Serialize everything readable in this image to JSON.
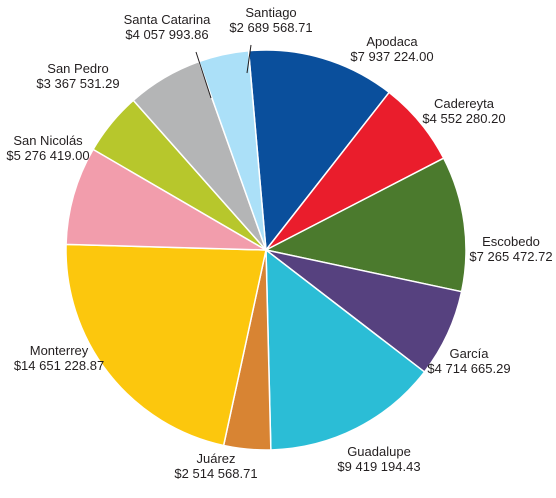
{
  "chart_data": {
    "type": "pie",
    "title": "",
    "slices": [
      {
        "name": "Apodaca",
        "value_text": "$7 937 224.00",
        "value": 7937224.0,
        "color": "#0a4f9c"
      },
      {
        "name": "Cadereyta",
        "value_text": "$4 552 280.20",
        "value": 4552280.2,
        "color": "#ea1d2c"
      },
      {
        "name": "Escobedo",
        "value_text": "$7 265 472.72",
        "value": 7265472.72,
        "color": "#4b7a2d"
      },
      {
        "name": "García",
        "value_text": "$4 714 665.29",
        "value": 4714665.29,
        "color": "#56417f"
      },
      {
        "name": "Guadalupe",
        "value_text": "$9 419 194.43",
        "value": 9419194.43,
        "color": "#2bbdd6"
      },
      {
        "name": "Juárez",
        "value_text": "$2 514 568.71",
        "value": 2514568.71,
        "color": "#d88433"
      },
      {
        "name": "Monterrey",
        "value_text": "$14 651 228.87",
        "value": 14651228.87,
        "color": "#fcc70d"
      },
      {
        "name": "San Nicolás",
        "value_text": "$5 276 419.00",
        "value": 5276419.0,
        "color": "#f29dac"
      },
      {
        "name": "San Pedro",
        "value_text": "$3 367 531.29",
        "value": 3367531.29,
        "color": "#b7c72c"
      },
      {
        "name": "Santa Catarina",
        "value_text": "$4 057 993.86",
        "value": 4057993.86,
        "color": "#b4b5b6"
      },
      {
        "name": "Santiago",
        "value_text": "$2 689 568.71",
        "value": 2689568.71,
        "color": "#abe0f8"
      }
    ]
  }
}
